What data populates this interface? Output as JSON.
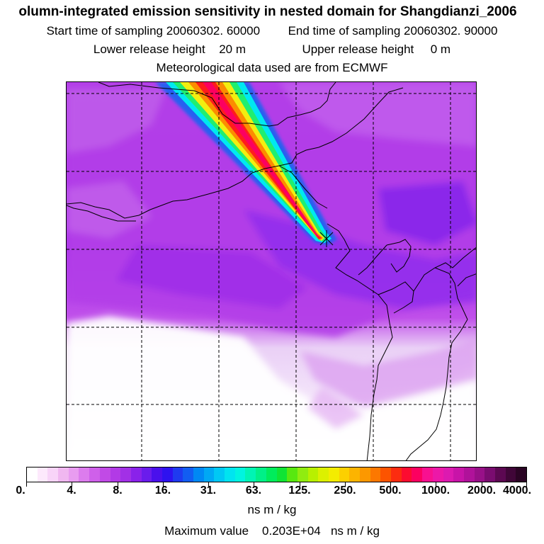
{
  "title": "olumn-integrated emission sensitivity in nested domain for Shangdianzi_2006",
  "sampling": {
    "start_label": "Start time of sampling",
    "start_value": "20060302. 60000",
    "end_label": "End time of sampling",
    "end_value": "20060302. 90000"
  },
  "release": {
    "lower_label": "Lower release height",
    "lower_value": "20 m",
    "upper_label": "Upper release height",
    "upper_value": "0 m"
  },
  "meteo": "Meteorological data used are from ECMWF",
  "colorbar": {
    "labels": [
      "0.",
      "4.",
      "8.",
      "16.",
      "31.",
      "63.",
      "125.",
      "250.",
      "500.",
      "1000.",
      "2000.",
      "4000."
    ],
    "swatches": [
      "#ffffff",
      "#fde9fc",
      "#f8d4f8",
      "#f0b7f0",
      "#e89cf0",
      "#dc7ced",
      "#cf60ea",
      "#c14ae6",
      "#b23ae6",
      "#a230e6",
      "#8a22ea",
      "#6a1cec",
      "#4a10ec",
      "#2e12f0",
      "#1f3af0",
      "#125df2",
      "#0088f4",
      "#00a8f4",
      "#00c8f4",
      "#00e4f0",
      "#00f4e0",
      "#00f4b4",
      "#00f088",
      "#00ec5c",
      "#10e434",
      "#58e810",
      "#90ec10",
      "#b8f000",
      "#dcf000",
      "#f4ec00",
      "#fcd000",
      "#fcb400",
      "#fc9800",
      "#fc7800",
      "#fc5400",
      "#fc2c10",
      "#fc0c30",
      "#fc0060",
      "#f81090",
      "#ec18a8",
      "#dc1ab0",
      "#c814a8",
      "#b0129a",
      "#981088",
      "#7a0c70",
      "#5c0852",
      "#400638",
      "#2a0424"
    ],
    "units": "ns m / kg"
  },
  "max_value": {
    "label": "Maximum value",
    "value": "0.203E+04",
    "unit": "ns m / kg"
  },
  "map": {
    "receptor_marker": "Shangdianzi receptor location"
  },
  "colors": {
    "background": "#b640e8",
    "plume_red": "#ff1c1c",
    "plume_yellow": "#f2ee10",
    "plume_cyan": "#00e8f0",
    "plume_blue": "#2860f0"
  }
}
